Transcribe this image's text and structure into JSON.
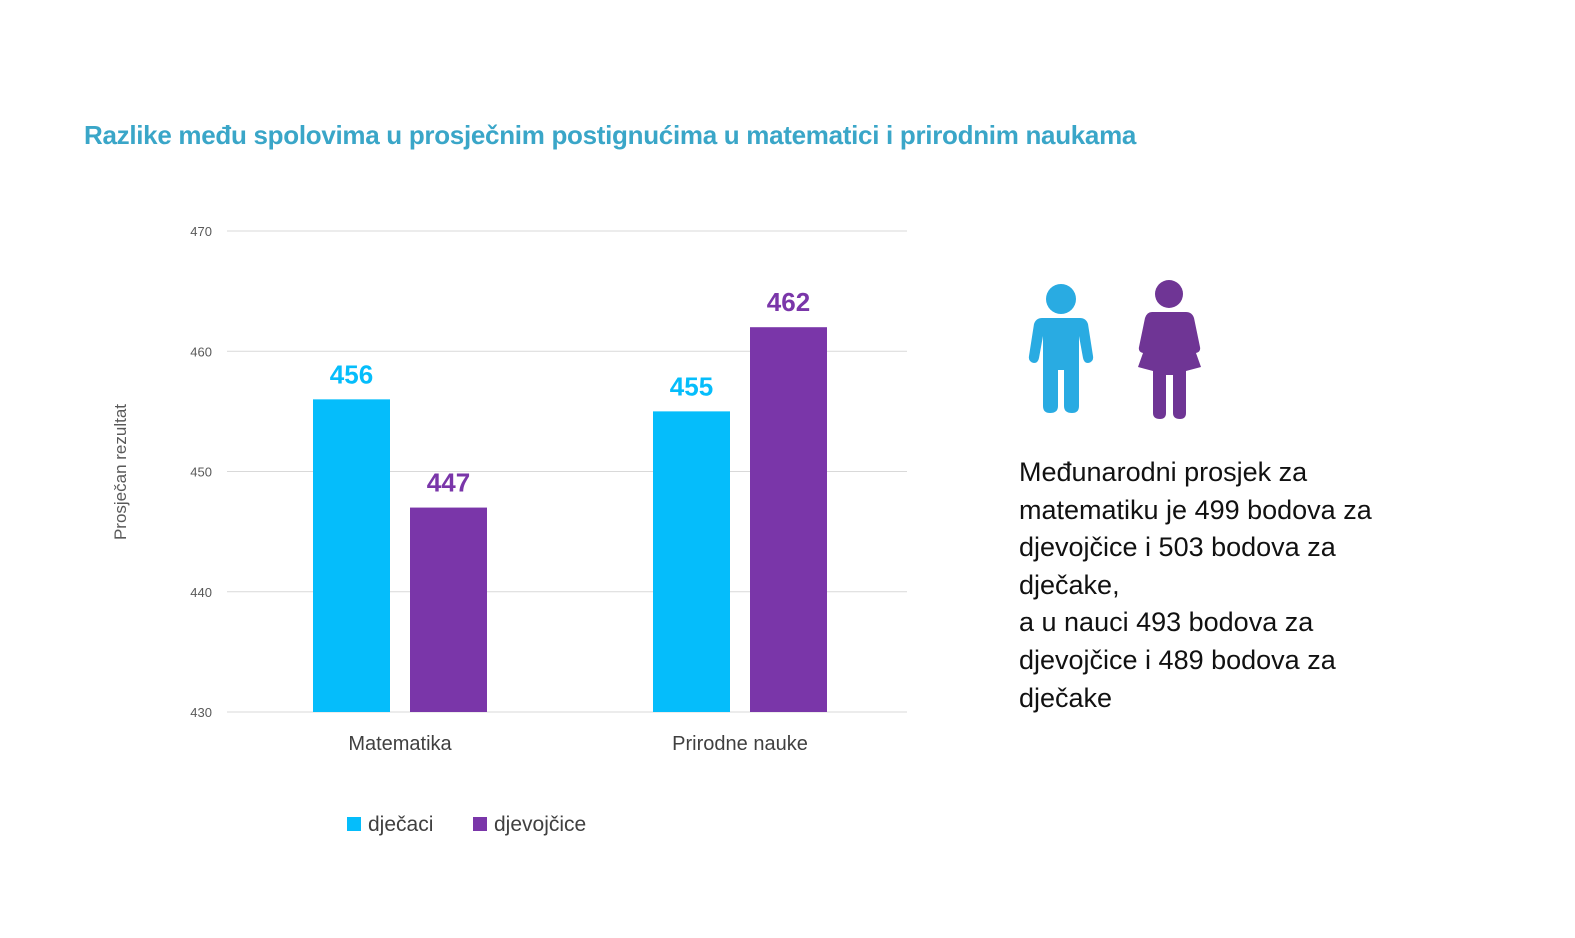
{
  "chart_data": {
    "type": "bar",
    "title": "Razlike među spolovima u prosječnim postignućima u matematici i prirodnim naukama",
    "ylabel": "Prosječan rezultat",
    "xlabel": "",
    "ylim": [
      430,
      470
    ],
    "yticks": [
      430,
      440,
      450,
      460,
      470
    ],
    "grid": true,
    "legend_position": "bottom",
    "categories": [
      "Matematika",
      "Prirodne nauke"
    ],
    "series": [
      {
        "name": "dječaci",
        "values": [
          456,
          455
        ],
        "color": "#05bdfb"
      },
      {
        "name": "djevojčice",
        "values": [
          447,
          462
        ],
        "color": "#7a36a9"
      }
    ]
  },
  "note": "Međunarodni prosjek za\nmatematiku je 499 bodova za\ndjevojčice i 503 bodova za\ndječake,\na u nauci 493 bodova za\ndjevojčice i 489 bodova za\ndječake",
  "icons": {
    "boy": "boy-figure-icon",
    "girl": "girl-figure-icon",
    "boy_color": "#29abe2",
    "girl_color": "#6f3595"
  }
}
